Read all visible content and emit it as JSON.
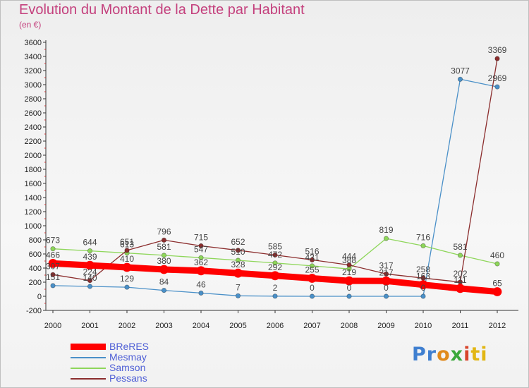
{
  "header": {
    "title": "Evolution du Montant de la Dette par Habitant",
    "subtitle": "(en €)"
  },
  "logo": {
    "parts": [
      "Pr",
      "o",
      "x",
      "i",
      "ti"
    ]
  },
  "chart_data": {
    "type": "line",
    "title": "Evolution du Montant de la Dette par Habitant",
    "subtitle": "(en €)",
    "xlabel": "",
    "ylabel": "",
    "ylim": [
      -200,
      3600
    ],
    "ytick_step": 200,
    "grid": false,
    "legend_position": "bottom-left",
    "categories": [
      "2000",
      "2001",
      "2002",
      "2003",
      "2004",
      "2005",
      "2006",
      "2007",
      "2008",
      "2009",
      "2010",
      "2011",
      "2012"
    ],
    "series": [
      {
        "name": "BReRES",
        "color": "#ff0000",
        "values": [
          466,
          439,
          410,
          380,
          362,
          328,
          292,
          255,
          219,
          217,
          163,
          111,
          65
        ]
      },
      {
        "name": "Mesmay",
        "color": "#4a90c8",
        "values": [
          151,
          140,
          129,
          84,
          46,
          7,
          2,
          0,
          0,
          0,
          0,
          3077,
          2969
        ]
      },
      {
        "name": "Samson",
        "color": "#8ed65a",
        "values": [
          673,
          644,
          613,
          581,
          547,
          510,
          472,
          431,
          388,
          819,
          716,
          581,
          460
        ]
      },
      {
        "name": "Pessans",
        "color": "#8b2d2d",
        "values": [
          307,
          224,
          651,
          796,
          715,
          652,
          585,
          516,
          444,
          317,
          258,
          202,
          3369
        ]
      }
    ]
  }
}
